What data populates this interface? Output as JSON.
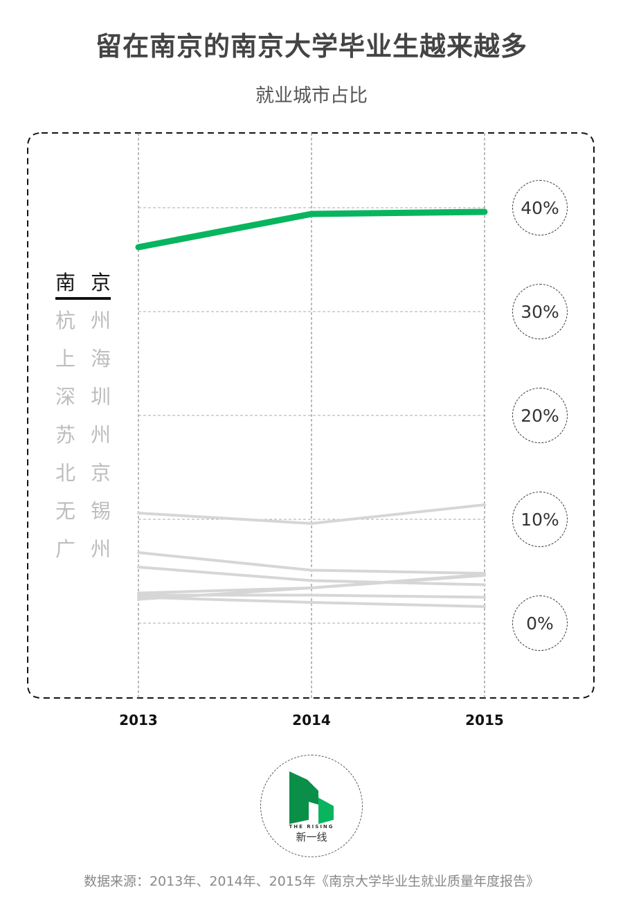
{
  "title": "留在南京的南京大学毕业生越来越多",
  "chart_data": {
    "type": "line",
    "title": "",
    "subtitle": "就业城市占比",
    "x": [
      "2013",
      "2014",
      "2015"
    ],
    "ylim": [
      0,
      40
    ],
    "y_ticks": [
      "0%",
      "10%",
      "20%",
      "30%",
      "40%"
    ],
    "grid": true,
    "legend_placement": "left",
    "highlight_color": "#08b55e",
    "other_color": "#d6d6d6",
    "series": [
      {
        "name": "南 京",
        "values": [
          36.2,
          39.4,
          39.6
        ],
        "highlight": true
      },
      {
        "name": "杭 州",
        "values": [
          10.6,
          9.6,
          11.4
        ]
      },
      {
        "name": "上 海",
        "values": [
          6.8,
          5.1,
          4.8
        ]
      },
      {
        "name": "深 圳",
        "values": [
          5.4,
          4.1,
          3.7
        ]
      },
      {
        "name": "苏 州",
        "values": [
          2.9,
          3.4,
          4.6
        ]
      },
      {
        "name": "北 京",
        "values": [
          2.7,
          2.7,
          2.5
        ]
      },
      {
        "name": "无 锡",
        "values": [
          2.5,
          2.0,
          1.6
        ]
      },
      {
        "name": "广 州",
        "values": [
          2.3,
          3.4,
          4.7
        ]
      }
    ]
  },
  "footer": {
    "logo_en": "THE RISING",
    "logo_cn": "新一线",
    "logo_colors": [
      "#0a8f49",
      "#08b55e"
    ],
    "source": "数据来源：2013年、2014年、2015年《南京大学毕业生就业质量年度报告》"
  }
}
